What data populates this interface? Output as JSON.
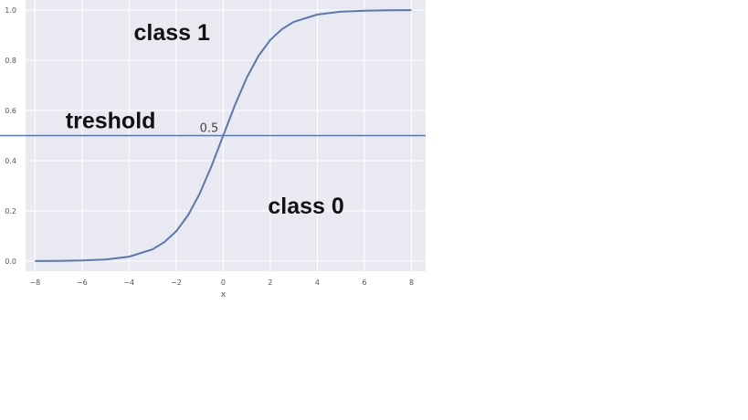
{
  "chart_data": {
    "type": "line",
    "title": "",
    "xlabel": "x",
    "ylabel": "",
    "xlim": [
      -8.4,
      8.6
    ],
    "ylim": [
      -0.04,
      1.04
    ],
    "grid": true,
    "x_ticks": [
      -8,
      -6,
      -4,
      -2,
      0,
      2,
      4,
      6,
      8
    ],
    "x_tick_labels": [
      "−8",
      "−6",
      "−4",
      "−2",
      "0",
      "2",
      "4",
      "6",
      "8"
    ],
    "y_ticks": [
      0.0,
      0.2,
      0.4,
      0.6,
      0.8,
      1.0
    ],
    "y_tick_labels": [
      "0.0",
      "0.2",
      "0.4",
      "0.6",
      "0.8",
      "1.0"
    ],
    "series": [
      {
        "color": "#5a78b0",
        "x": [
          -8,
          -7,
          -6,
          -5,
          -4,
          -3,
          -2.5,
          -2,
          -1.5,
          -1,
          -0.5,
          0,
          0.5,
          1,
          1.5,
          2,
          2.5,
          3,
          4,
          5,
          6,
          7,
          8
        ],
        "y": [
          0.0003,
          0.0009,
          0.0025,
          0.0067,
          0.018,
          0.047,
          0.076,
          0.119,
          0.182,
          0.269,
          0.378,
          0.5,
          0.622,
          0.731,
          0.818,
          0.881,
          0.924,
          0.953,
          0.982,
          0.9933,
          0.9975,
          0.9991,
          0.9997
        ]
      }
    ],
    "hlines": [
      {
        "y": 0.5,
        "color": "#5a78b0"
      }
    ],
    "annotations": [
      {
        "text": "class 1",
        "x": -3.8,
        "y": 0.88,
        "style": "big"
      },
      {
        "text": "treshold",
        "x": -6.7,
        "y": 0.53,
        "style": "big"
      },
      {
        "text": "0.5",
        "x": -1.0,
        "y": 0.515,
        "style": "small"
      },
      {
        "text": "class 0",
        "x": 1.9,
        "y": 0.19,
        "style": "big"
      }
    ],
    "colors": {
      "plot_background": "#e9e9f1",
      "grid": "#ffffff"
    }
  }
}
